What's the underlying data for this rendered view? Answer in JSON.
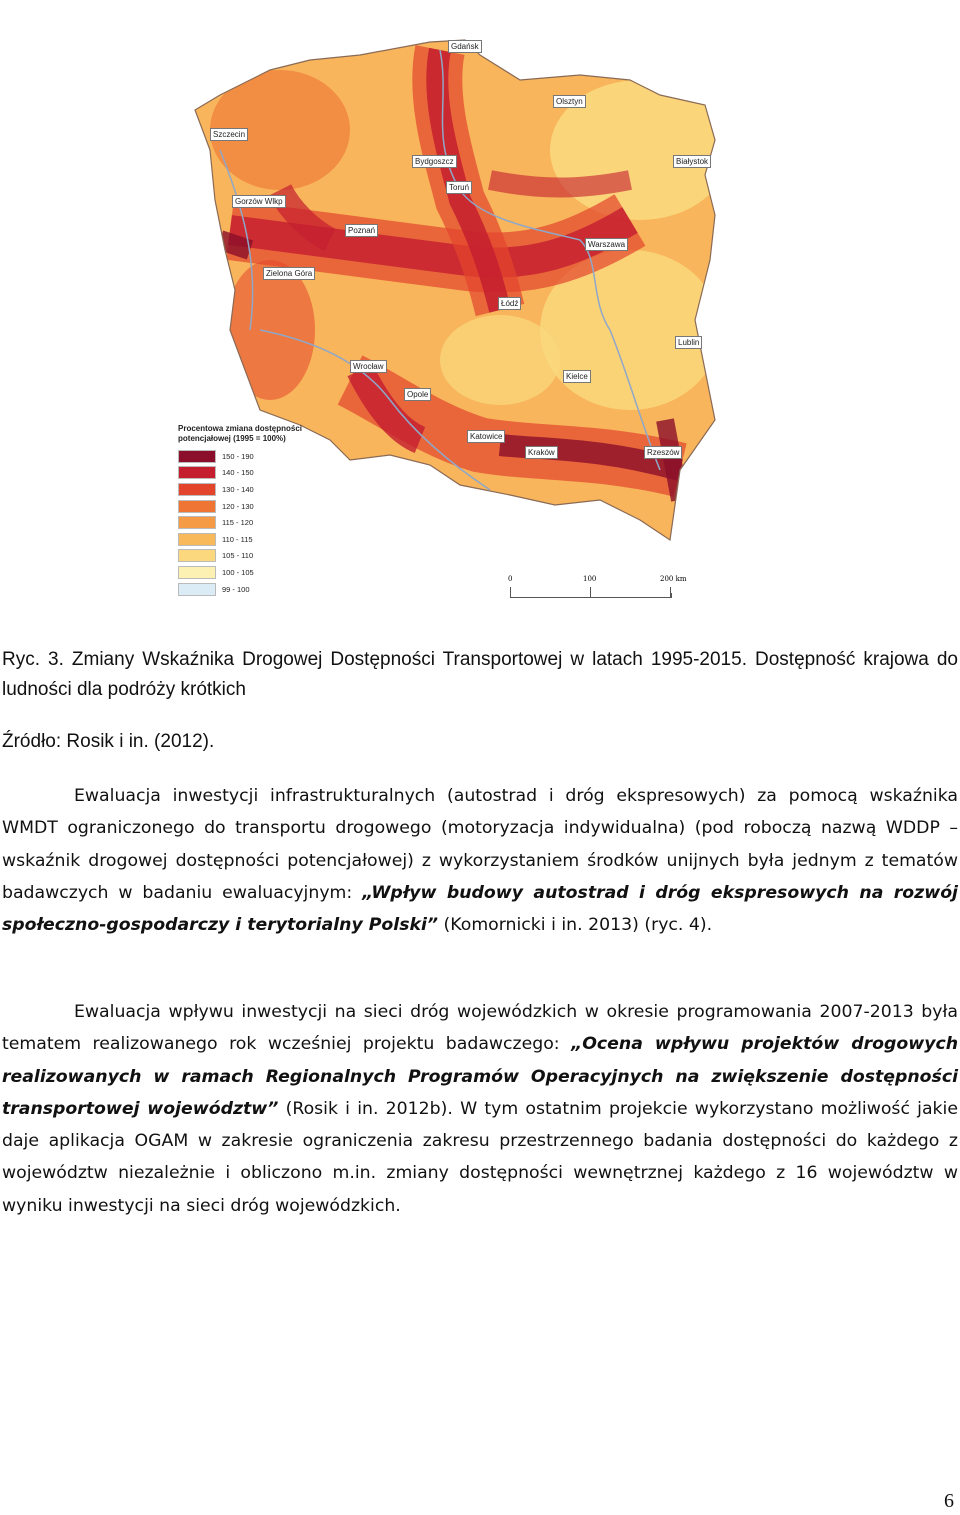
{
  "map": {
    "cities": [
      "Gdańsk",
      "Olsztyn",
      "Szczecin",
      "Bydgoszcz",
      "Białystok",
      "Toruń",
      "Gorzów Wlkp",
      "Poznań",
      "Warszawa",
      "Zielona Góra",
      "Łódź",
      "Lublin",
      "Wrocław",
      "Kielce",
      "Opole",
      "Katowice",
      "Kraków",
      "Rzeszów"
    ],
    "legend": {
      "title": "Procentowa zmiana dostępności potencjałowej (1995 = 100%)",
      "items": [
        {
          "label": "150 - 190",
          "color": "#8b0f2a"
        },
        {
          "label": "140 - 150",
          "color": "#c41e2f"
        },
        {
          "label": "130 - 140",
          "color": "#e3452c"
        },
        {
          "label": "120 - 130",
          "color": "#ef7534"
        },
        {
          "label": "115 - 120",
          "color": "#f59a45"
        },
        {
          "label": "110 - 115",
          "color": "#f8b95a"
        },
        {
          "label": "105 - 110",
          "color": "#fbd87d"
        },
        {
          "label": "100 - 105",
          "color": "#fdf0b3"
        },
        {
          "label": "99 - 100",
          "color": "#dcecf7"
        }
      ]
    },
    "scale": {
      "labels": [
        "0",
        "100",
        "200 km"
      ]
    }
  },
  "caption": {
    "line": "Ryc. 3. Zmiany Wskaźnika Drogowej Dostępności Transportowej w latach 1995-2015. Dostępność krajowa do ludności dla podróży krótkich",
    "source": "Źródło: Rosik i in. (2012)."
  },
  "paragraph1": {
    "a": "Ewaluacja inwestycji infrastrukturalnych (autostrad i dróg ekspresowych) za pomocą wskaźnika WMDT ograniczonego do transportu drogowego (motoryzacja indywidualna) (pod roboczą nazwą WDDP – wskaźnik drogowej dostępności potencjałowej) z wykorzystaniem środków unijnych była jednym z tematów badawczych w badaniu ewaluacyjnym: ",
    "title": "„Wpływ budowy autostrad i dróg ekspresowych na rozwój społeczno-gospodarczy i terytorialny Polski”",
    "b": " (Komornicki i in. 2013) (ryc. 4)."
  },
  "paragraph2": {
    "a": "Ewaluacja wpływu inwestycji na sieci dróg wojewódzkich w okresie programowania 2007-2013 była tematem realizowanego rok wcześniej projektu badawczego: ",
    "title": "„Ocena wpływu projektów drogowych realizowanych w ramach Regionalnych Programów Operacyjnych na zwiększenie dostępności transportowej województw”",
    "b": " (Rosik i in. 2012b). W tym ostatnim projekcie wykorzystano możliwość jakie daje aplikacja OGAM w zakresie ograniczenia zakresu przestrzennego badania dostępności do każdego z województw niezależnie i obliczono m.in. zmiany dostępności wewnętrznej każdego z 16 województw w wyniku inwestycji na sieci dróg wojewódzkich."
  },
  "page_number": "6"
}
